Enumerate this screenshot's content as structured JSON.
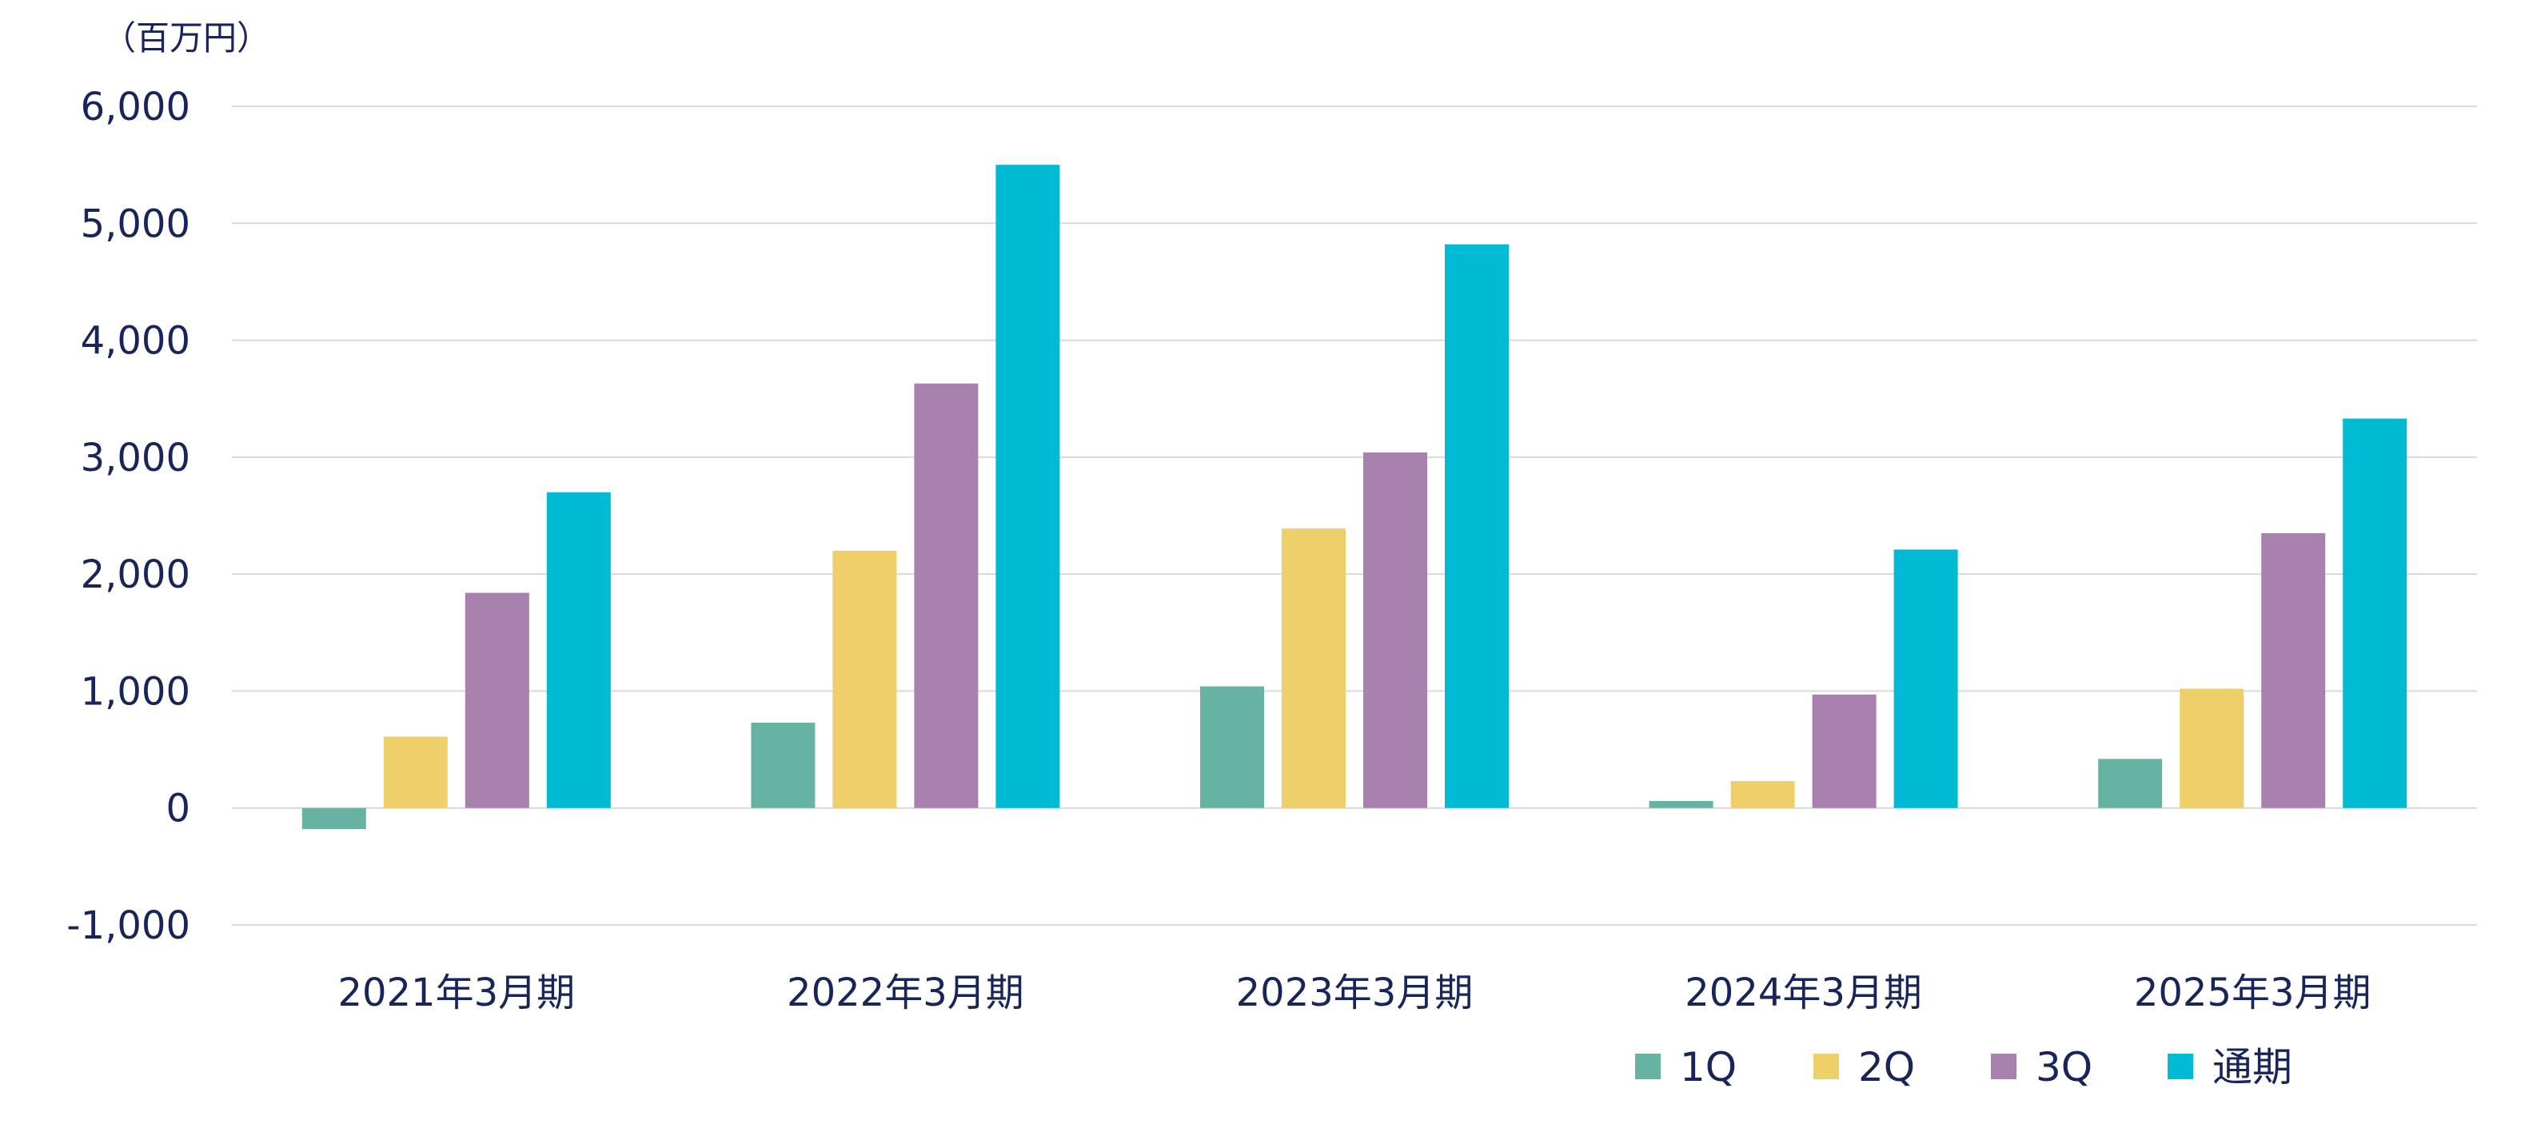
{
  "chart_data": {
    "type": "bar",
    "unit": "（百万円）",
    "categories": [
      "2021年3月期",
      "2022年3月期",
      "2023年3月期",
      "2024年3月期",
      "2025年3月期"
    ],
    "series": [
      {
        "name": "1Q",
        "color": "#67b3a3",
        "values": [
          -180,
          730,
          1040,
          60,
          420
        ]
      },
      {
        "name": "2Q",
        "color": "#efcf6a",
        "values": [
          610,
          2200,
          2390,
          230,
          1020
        ]
      },
      {
        "name": "3Q",
        "color": "#a981af",
        "values": [
          1840,
          3630,
          3040,
          970,
          2350
        ]
      },
      {
        "name": "通期",
        "color": "#00bbd3",
        "values": [
          2700,
          5500,
          4820,
          2210,
          3330
        ]
      }
    ],
    "ylim": [
      -1000,
      6000
    ],
    "yticks": [
      -1000,
      0,
      1000,
      2000,
      3000,
      4000,
      5000,
      6000
    ],
    "ytick_labels": [
      "-1,000",
      "0",
      "1,000",
      "2,000",
      "3,000",
      "4,000",
      "5,000",
      "6,000"
    ],
    "grid": true,
    "legend_position": "bottom-right",
    "title": "",
    "xlabel": "",
    "ylabel": ""
  }
}
